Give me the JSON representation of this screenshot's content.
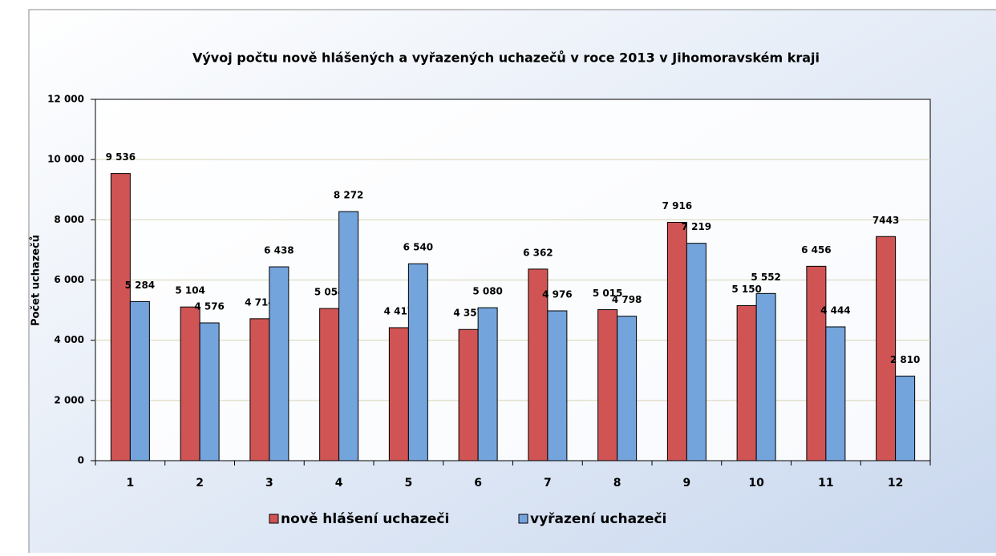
{
  "chart_data": {
    "type": "bar",
    "title": "Vývoj počtu nově hlášených a vyřazených uchazečů v roce  2013 v Jihomoravském kraji",
    "y_label": "Počet  uchazečů",
    "categories": [
      "1",
      "2",
      "3",
      "4",
      "5",
      "6",
      "7",
      "8",
      "9",
      "10",
      "11",
      "12"
    ],
    "series": [
      {
        "name": "nově hlášení uchazeči",
        "color": "#d05454",
        "values": [
          9536,
          5104,
          4714,
          5054,
          4417,
          4357,
          6362,
          5015,
          7916,
          5150,
          6456,
          7443
        ],
        "value_labels": [
          "9 536",
          "5 104",
          "4 714",
          "5 054",
          "4 417",
          "4 357",
          "6 362",
          "5 015",
          "7 916",
          "5 150",
          "6 456",
          "7443"
        ]
      },
      {
        "name": "vyřazení uchazeči",
        "color": "#74a4dc",
        "values": [
          5284,
          4576,
          6438,
          8272,
          6540,
          5080,
          4976,
          4798,
          7219,
          5552,
          4444,
          2810
        ],
        "value_labels": [
          "5 284",
          "4 576",
          "6 438",
          "8 272",
          "6 540",
          "5 080",
          "4 976",
          "4 798",
          "7 219",
          "5 552",
          "4 444",
          "2 810"
        ]
      }
    ],
    "ylim": [
      0,
      12000
    ],
    "yticks": [
      0,
      {
        "value": 2000,
        "label": "2 000"
      },
      {
        "value": 4000,
        "label": "4 000"
      },
      {
        "value": 6000,
        "label": "6 000"
      },
      {
        "value": 8000,
        "label": "8 000"
      },
      {
        "value": 10000,
        "label": "10 000"
      },
      {
        "value": 12000,
        "label": "12 000"
      }
    ],
    "grid": true,
    "legend": "bottom"
  }
}
